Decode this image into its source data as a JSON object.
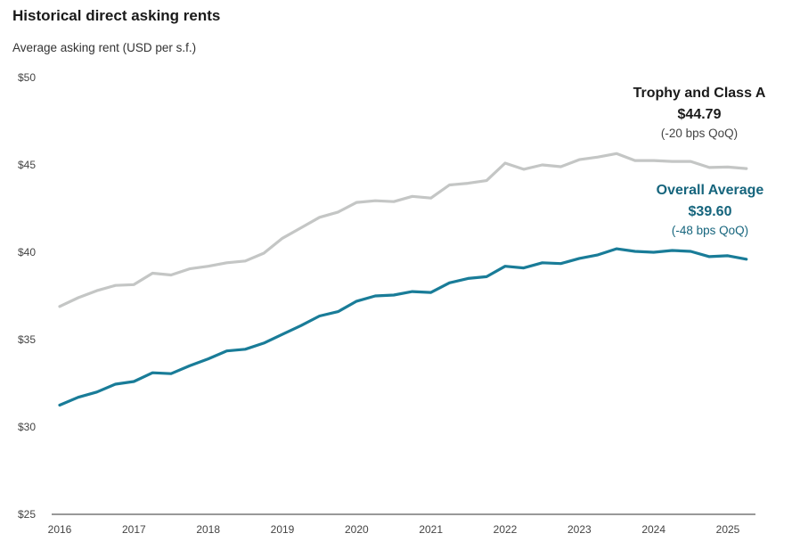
{
  "chart_data": {
    "type": "line",
    "title": "Historical direct asking rents",
    "ylabel": "Average asking rent (USD per s.f.)",
    "xlabel": "",
    "ylim": [
      25,
      50
    ],
    "y_ticks": [
      50,
      45,
      40,
      35,
      30,
      25
    ],
    "y_tick_labels": [
      "$50",
      "$45",
      "$40",
      "$35",
      "$30",
      "$25"
    ],
    "xlim": [
      2016,
      2025.5
    ],
    "x_ticks": [
      2016,
      2017,
      2018,
      2019,
      2020,
      2021,
      2022,
      2023,
      2024,
      2025
    ],
    "x_tick_labels": [
      "2016",
      "2017",
      "2018",
      "2019",
      "2020",
      "2021",
      "2022",
      "2023",
      "2024",
      "2025"
    ],
    "grid": false,
    "series": [
      {
        "name": "Trophy and Class A",
        "color": "#c4c6c5",
        "value_label": "$44.79",
        "change_label": "(-20 bps QoQ)",
        "label_color": "#1a1a1a",
        "change_color": "#444444",
        "x": [
          2016.0,
          2016.25,
          2016.5,
          2016.75,
          2017.0,
          2017.25,
          2017.5,
          2017.75,
          2018.0,
          2018.25,
          2018.5,
          2018.75,
          2019.0,
          2019.25,
          2019.5,
          2019.75,
          2020.0,
          2020.25,
          2020.5,
          2020.75,
          2021.0,
          2021.25,
          2021.5,
          2021.75,
          2022.0,
          2022.25,
          2022.5,
          2022.75,
          2023.0,
          2023.25,
          2023.5,
          2023.75,
          2024.0,
          2024.25,
          2024.5,
          2024.75,
          2025.0,
          2025.25
        ],
        "values": [
          36.9,
          37.4,
          37.8,
          38.1,
          38.15,
          38.8,
          38.7,
          39.05,
          39.2,
          39.4,
          39.5,
          39.95,
          40.8,
          41.4,
          42.0,
          42.3,
          42.85,
          42.95,
          42.9,
          43.2,
          43.1,
          43.85,
          43.95,
          44.1,
          45.1,
          44.75,
          45.0,
          44.9,
          45.3,
          45.45,
          45.65,
          45.25,
          45.25,
          45.2,
          45.2,
          44.85,
          44.88,
          44.79
        ]
      },
      {
        "name": "Overall Average",
        "color": "#197c98",
        "value_label": "$39.60",
        "change_label": "(-48 bps QoQ)",
        "label_color": "#16657d",
        "change_color": "#16657d",
        "x": [
          2016.0,
          2016.25,
          2016.5,
          2016.75,
          2017.0,
          2017.25,
          2017.5,
          2017.75,
          2018.0,
          2018.25,
          2018.5,
          2018.75,
          2019.0,
          2019.25,
          2019.5,
          2019.75,
          2020.0,
          2020.25,
          2020.5,
          2020.75,
          2021.0,
          2021.25,
          2021.5,
          2021.75,
          2022.0,
          2022.25,
          2022.5,
          2022.75,
          2023.0,
          2023.25,
          2023.5,
          2023.75,
          2024.0,
          2024.25,
          2024.5,
          2024.75,
          2025.0,
          2025.25
        ],
        "values": [
          31.25,
          31.7,
          32.0,
          32.45,
          32.6,
          33.1,
          33.05,
          33.5,
          33.9,
          34.35,
          34.45,
          34.8,
          35.3,
          35.8,
          36.35,
          36.6,
          37.2,
          37.5,
          37.55,
          37.75,
          37.7,
          38.25,
          38.5,
          38.6,
          39.2,
          39.1,
          39.4,
          39.35,
          39.65,
          39.85,
          40.2,
          40.05,
          40.0,
          40.1,
          40.05,
          39.75,
          39.8,
          39.6
        ]
      }
    ]
  }
}
